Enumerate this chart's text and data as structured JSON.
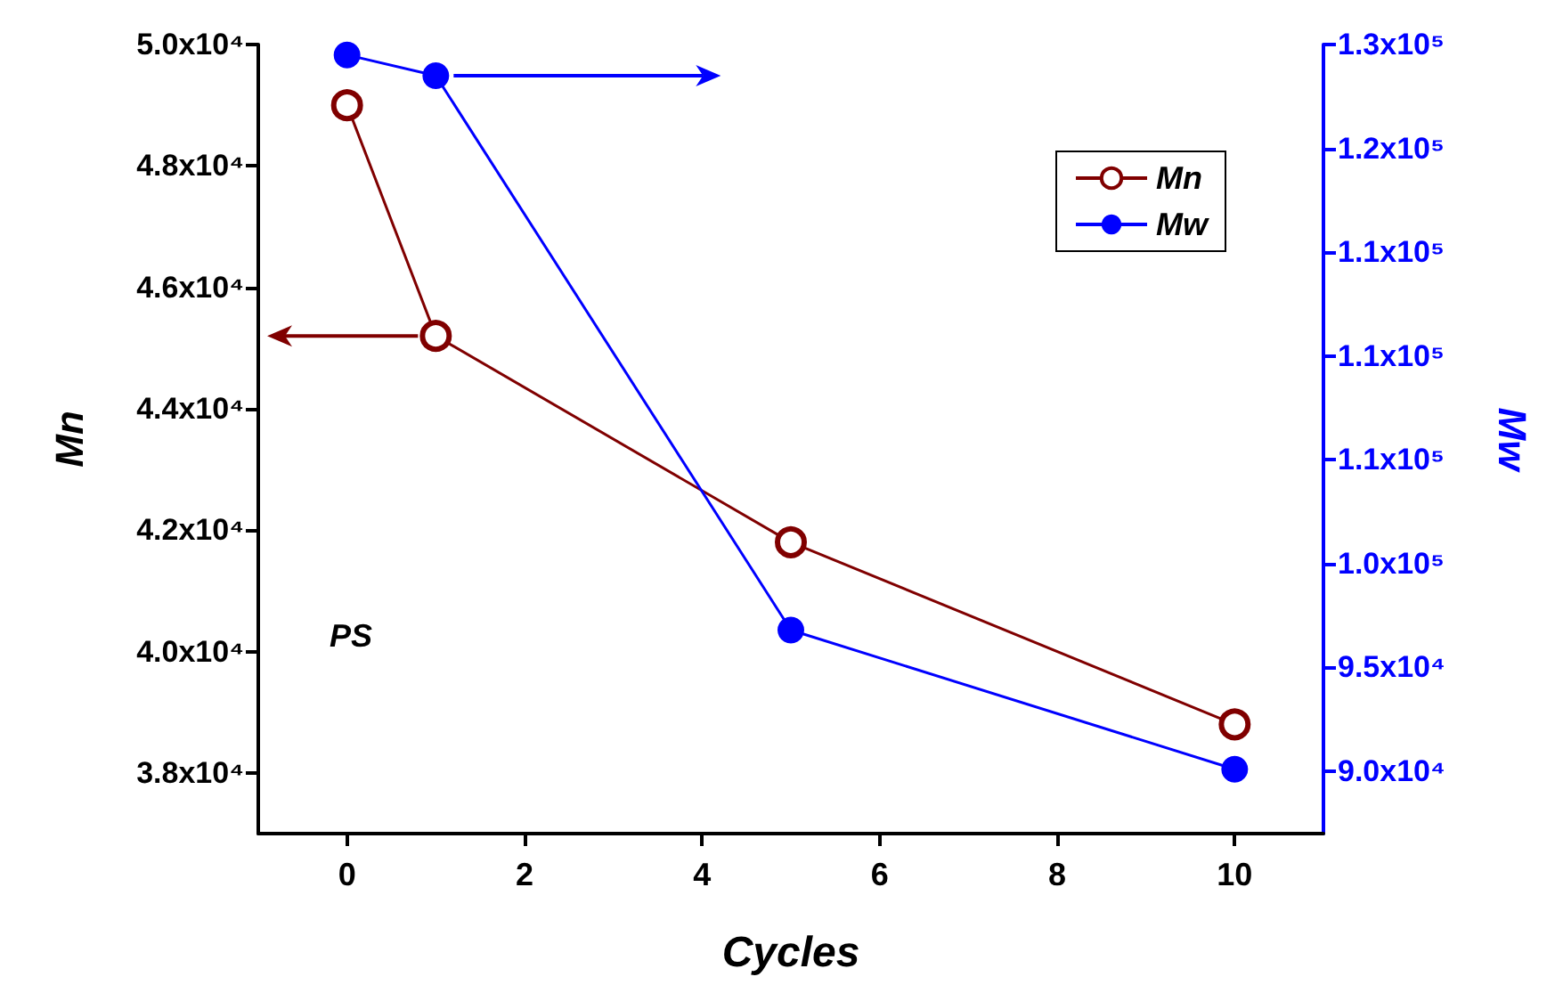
{
  "chart_data": {
    "type": "line",
    "xlabel": "Cycles",
    "ylabel": "Mn",
    "y2label": "Mw",
    "xlim": [
      -1,
      11
    ],
    "xticks": [
      0,
      2,
      4,
      6,
      8,
      10
    ],
    "ylim": [
      37000,
      50000
    ],
    "yticks": [
      {
        "value": 38000,
        "label": "3.8x10⁴"
      },
      {
        "value": 40000,
        "label": "4.0x10⁴"
      },
      {
        "value": 42000,
        "label": "4.2x10⁴"
      },
      {
        "value": 44000,
        "label": "4.4x10⁴"
      },
      {
        "value": 46000,
        "label": "4.6x10⁴"
      },
      {
        "value": 48000,
        "label": "4.8x10⁴"
      },
      {
        "value": 50000,
        "label": "5.0x10⁴"
      }
    ],
    "y2lim": [
      87000,
      125000
    ],
    "y2ticks": [
      {
        "value": 90000,
        "label": "9.0x10⁴"
      },
      {
        "value": 95000,
        "label": "9.5x10⁴"
      },
      {
        "value": 100000,
        "label": "1.0x10⁵"
      },
      {
        "value": 105000,
        "label": "1.1x10⁵"
      },
      {
        "value": 110000,
        "label": "1.1x10⁵"
      },
      {
        "value": 115000,
        "label": "1.1x10⁵"
      },
      {
        "value": 120000,
        "label": "1.2x10⁵"
      },
      {
        "value": 125000,
        "label": "1.3x10⁵"
      }
    ],
    "x": [
      0,
      1,
      5,
      10
    ],
    "series": [
      {
        "name": "Mn",
        "color": "#800000",
        "values": [
          49000,
          45200,
          41800,
          38800
        ]
      },
      {
        "name": "Mw",
        "color": "#0000ff",
        "axis": "y2",
        "values": [
          124500,
          123500,
          96800,
          90100
        ]
      }
    ],
    "marker": "circle",
    "line_style": "solid",
    "grid": false,
    "legend": "top right",
    "annotations": [
      "PS"
    ]
  }
}
